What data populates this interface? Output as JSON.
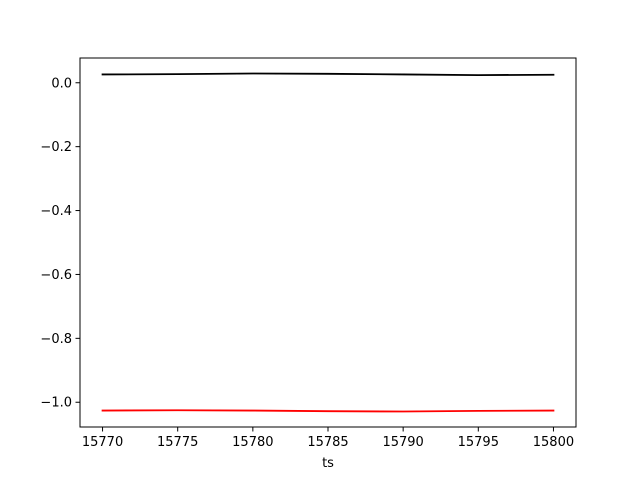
{
  "chart_data": {
    "type": "line",
    "title": "",
    "xlabel": "ts",
    "ylabel": "",
    "xlim": [
      15768.5,
      15801.5
    ],
    "ylim": [
      -1.0775,
      0.0775
    ],
    "grid": false,
    "legend": "none",
    "x_ticks": [
      15770,
      15775,
      15780,
      15785,
      15790,
      15795,
      15800
    ],
    "x_tick_labels": [
      "15770",
      "15775",
      "15780",
      "15785",
      "15790",
      "15795",
      "15800"
    ],
    "y_ticks": [
      0.0,
      -0.2,
      -0.4,
      -0.6,
      -0.8,
      -1.0
    ],
    "y_tick_labels": [
      "0.0",
      "−0.2",
      "−0.4",
      "−0.6",
      "−0.8",
      "−1.0"
    ],
    "series": [
      {
        "color": "#000000",
        "x": [
          15770,
          15775,
          15780,
          15785,
          15790,
          15795,
          15800
        ],
        "y": [
          0.026,
          0.027,
          0.029,
          0.028,
          0.026,
          0.024,
          0.025
        ]
      },
      {
        "color": "#ff0000",
        "x": [
          15770,
          15775,
          15780,
          15785,
          15790,
          15795,
          15800
        ],
        "y": [
          -1.026,
          -1.025,
          -1.026,
          -1.028,
          -1.029,
          -1.027,
          -1.026
        ]
      }
    ]
  }
}
